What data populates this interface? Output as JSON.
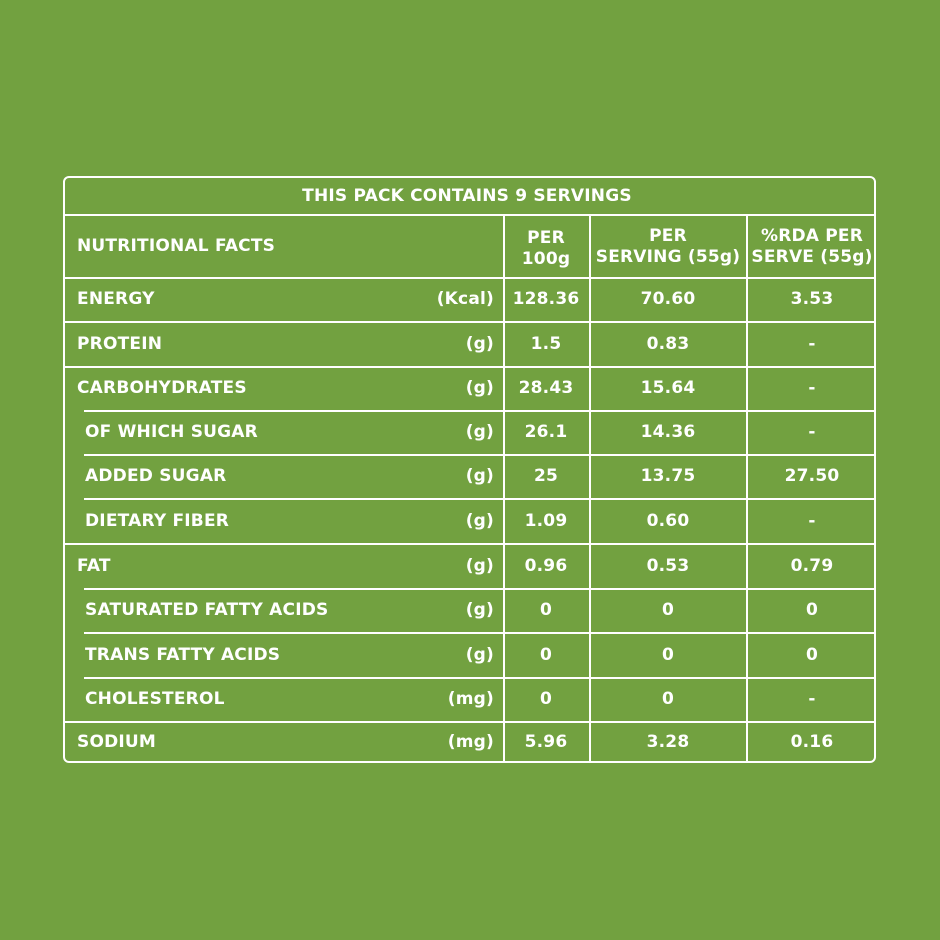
{
  "table": {
    "title": "THIS PACK CONTAINS 9 SERVINGS",
    "header": {
      "label": "NUTRITIONAL FACTS",
      "col1_line1": "PER",
      "col1_line2": "100g",
      "col2_line1": "PER",
      "col2_line2": "SERVING (55g)",
      "col3_line1": "%RDA PER",
      "col3_line2": "SERVE (55g)"
    },
    "rows": [
      {
        "name": "ENERGY",
        "unit": "(Kcal)",
        "per100g": "128.36",
        "perServing": "70.60",
        "rda": "3.53"
      },
      {
        "name": "PROTEIN",
        "unit": "(g)",
        "per100g": "1.5",
        "perServing": "0.83",
        "rda": "-"
      },
      {
        "name": "CARBOHYDRATES",
        "unit": "(g)",
        "per100g": "28.43",
        "perServing": "15.64",
        "rda": "-"
      },
      {
        "name": "OF WHICH SUGAR",
        "unit": "(g)",
        "per100g": "26.1",
        "perServing": "14.36",
        "rda": "-"
      },
      {
        "name": "ADDED SUGAR",
        "unit": "(g)",
        "per100g": "25",
        "perServing": "13.75",
        "rda": "27.50"
      },
      {
        "name": "DIETARY FIBER",
        "unit": "(g)",
        "per100g": "1.09",
        "perServing": "0.60",
        "rda": "-"
      },
      {
        "name": "FAT",
        "unit": "(g)",
        "per100g": "0.96",
        "perServing": "0.53",
        "rda": "0.79"
      },
      {
        "name": "SATURATED FATTY ACIDS",
        "unit": "(g)",
        "per100g": "0",
        "perServing": "0",
        "rda": "0"
      },
      {
        "name": "TRANS FATTY ACIDS",
        "unit": "(g)",
        "per100g": "0",
        "perServing": "0",
        "rda": "0"
      },
      {
        "name": "CHOLESTEROL",
        "unit": "(mg)",
        "per100g": "0",
        "perServing": "0",
        "rda": "-"
      },
      {
        "name": "SODIUM",
        "unit": "(mg)",
        "per100g": "5.96",
        "perServing": "3.28",
        "rda": "0.16"
      }
    ]
  },
  "colors": {
    "background": "#72a140",
    "lines": "#ffffff",
    "text": "#ffffff"
  }
}
